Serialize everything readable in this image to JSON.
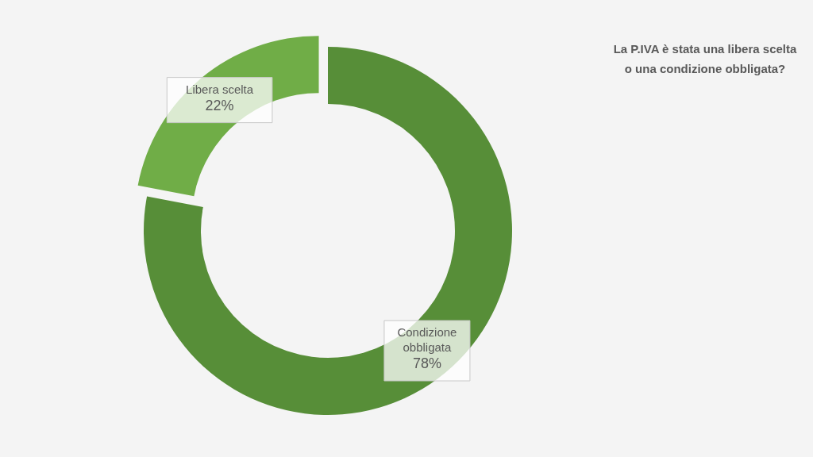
{
  "chart_data": {
    "type": "donut",
    "title": "La P.IVA è stata una libera scelta o una condizione obbligata?",
    "categories": [
      "Condizione obbligata",
      "Libera scelta"
    ],
    "values": [
      78,
      22
    ],
    "colors": [
      "#578e38",
      "#70ad47"
    ],
    "value_labels": [
      "78%",
      "22%"
    ]
  }
}
